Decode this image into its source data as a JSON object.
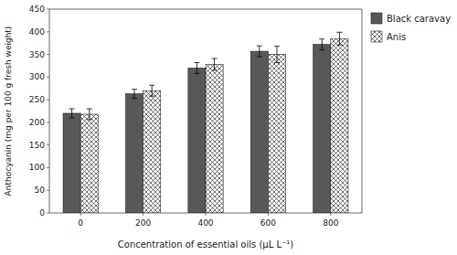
{
  "chart_data": {
    "type": "bar",
    "xlabel": "Concentration of essential oils (μL L⁻¹)",
    "ylabel": "Anthocyanin (mg per 100 g fresh weight)",
    "categories": [
      "0",
      "200",
      "400",
      "600",
      "800"
    ],
    "series": [
      {
        "name": "Black caravay",
        "color": "#585858",
        "values": [
          220,
          263,
          320,
          357,
          372
        ],
        "errors": [
          10,
          10,
          12,
          12,
          12
        ]
      },
      {
        "name": "Anis",
        "color": "#ffffff",
        "values": [
          218,
          270,
          328,
          350,
          385
        ],
        "errors": [
          12,
          12,
          13,
          18,
          14
        ]
      }
    ],
    "ylim": [
      0,
      450
    ],
    "yticks": [
      0,
      50,
      100,
      150,
      200,
      250,
      300,
      350,
      400,
      450
    ],
    "grid": false,
    "legend": "right"
  }
}
